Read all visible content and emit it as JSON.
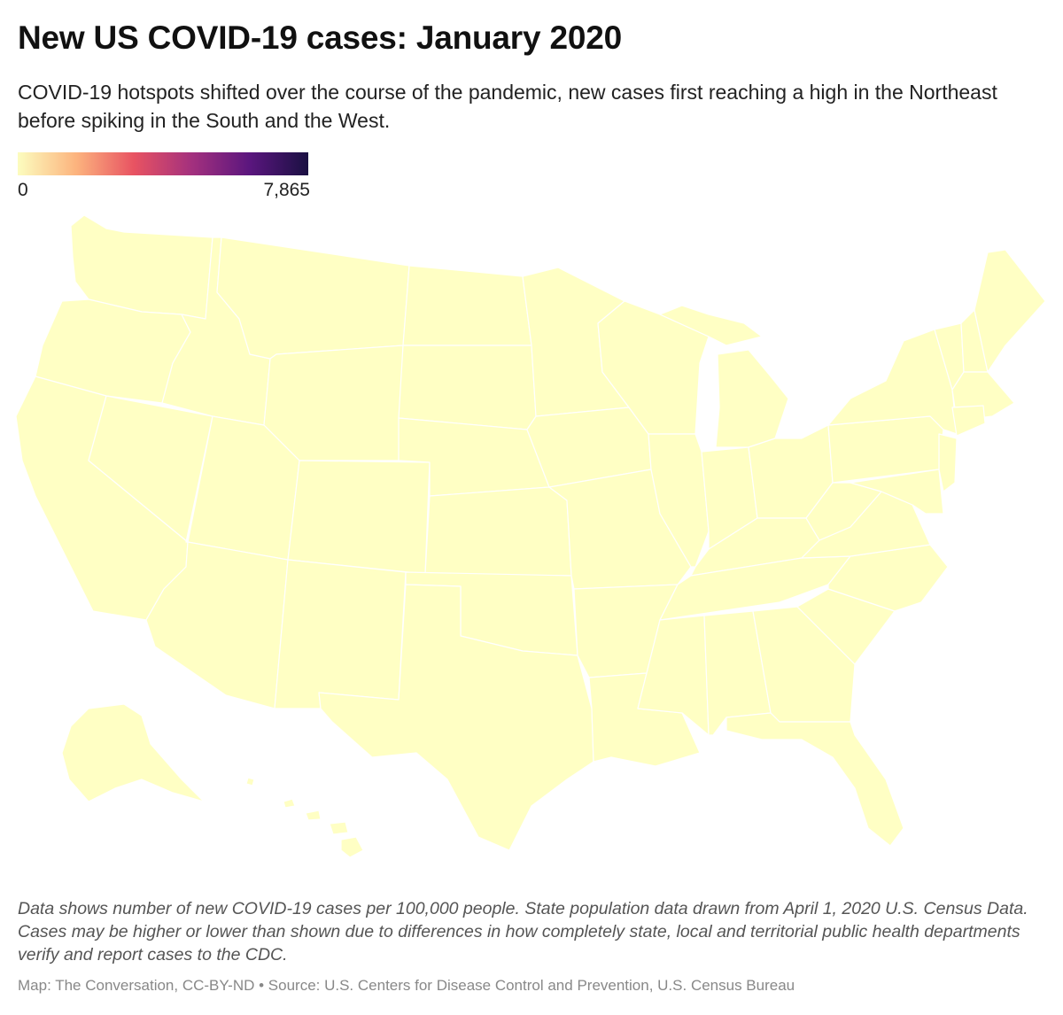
{
  "title": "New US COVID-19 cases: January 2020",
  "subtitle": "COVID-19 hotspots shifted over the course of the pandemic, new cases first reaching a high in the Northeast before spiking in the South and the West.",
  "legend": {
    "min_label": "0",
    "max_label": "7,865",
    "min_value": 0,
    "max_value": 7865,
    "colors": [
      "#fcfdbf",
      "#fcb47e",
      "#e85362",
      "#a3307e",
      "#5a167e",
      "#1a1042"
    ]
  },
  "map": {
    "type": "choropleth",
    "fill_color": "#ffffc4",
    "border_color": "#ffffff"
  },
  "footnote": "Data shows number of new COVID-19 cases per 100,000 people. State population data drawn from April 1, 2020 U.S. Census Data. Cases may be higher or lower than shown due to differences in how completely state, local and territorial public health departments verify and report cases to the CDC.",
  "credit": "Map: The Conversation, CC-BY-ND • Source: U.S. Centers for Disease Control and Prevention, U.S. Census Bureau"
}
